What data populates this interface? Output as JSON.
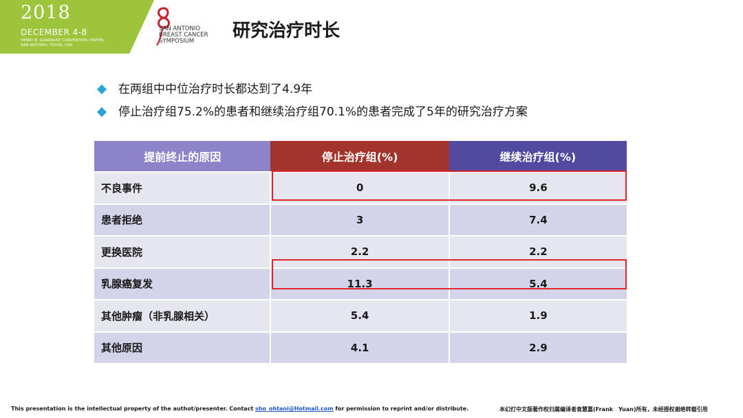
{
  "header": {
    "year": "2018",
    "dates": "DECEMBER 4-8",
    "venue_line1": "HENRY B. GONZALEZ CONVENTION CENTER,",
    "venue_line2": "SAN ANTONIO, TEXAS, USA",
    "logo_lines": [
      "SAN ANTONIO",
      "BREAST CANCER",
      "SYMPOSIUM"
    ],
    "brand_green": "#9dc43a",
    "logo_red": "#c8202e"
  },
  "title": "研究治疗时长",
  "bullets": [
    "在两组中中位治疗时长都达到了4.9年",
    "停止治疗组75.2%的患者和继续治疗组70.1%的患者完成了5年的研究治疗方案"
  ],
  "bullet_color": "#2aa3d8",
  "table": {
    "columns": [
      "提前终止的原因",
      "停止治疗组(%)",
      "继续治疗组(%)"
    ],
    "header_colors": [
      "#8c83c9",
      "#a3342c",
      "#514aa0"
    ],
    "rows": [
      [
        "不良事件",
        "0",
        "9.6"
      ],
      [
        "患者拒绝",
        "3",
        "7.4"
      ],
      [
        "更换医院",
        "2.2",
        "2.2"
      ],
      [
        "乳腺癌复发",
        "11.3",
        "5.4"
      ],
      [
        "其他肿瘤（非乳腺相关）",
        "5.4",
        "1.9"
      ],
      [
        "其他原因",
        "4.1",
        "2.9"
      ]
    ],
    "highlighted_rows": [
      "不良事件",
      "乳腺癌复发"
    ],
    "highlight_color": "#e0222a"
  },
  "footer": {
    "left_before": "This presentation is the intellectual property of the authot/presenter. Contact ",
    "email": "sho_ohtani@Hotmail.com",
    "left_after": " for permission to reprint and/or distribute.",
    "right": "本幻灯中文版著作权归属编译者袁慧嘉(Frank　Yuan)所有，未经授权谢绝转载引用"
  }
}
